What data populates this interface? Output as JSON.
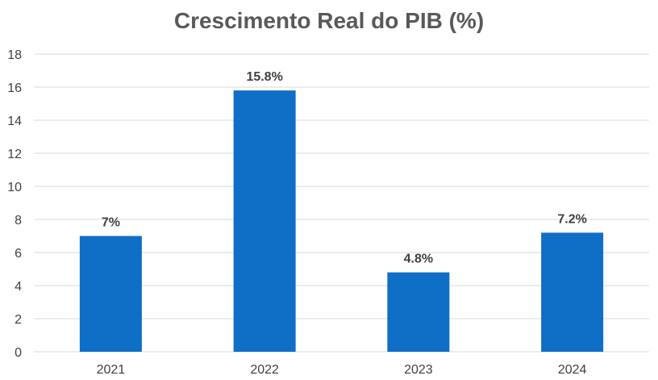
{
  "chart_data": {
    "type": "bar",
    "title": "Crescimento Real do PIB (%)",
    "xlabel": "",
    "ylabel": "",
    "categories": [
      "2021",
      "2022",
      "2023",
      "2024"
    ],
    "values": [
      7,
      15.8,
      4.8,
      7.2
    ],
    "data_labels": [
      "7%",
      "15.8%",
      "4.8%",
      "7.2%"
    ],
    "ylim": [
      0,
      18
    ],
    "y_ticks": [
      0,
      2,
      4,
      6,
      8,
      10,
      12,
      14,
      16,
      18
    ],
    "grid": true,
    "legend": "none",
    "bar_color": "#0F6EC6",
    "grid_color": "#D9D9D9"
  }
}
